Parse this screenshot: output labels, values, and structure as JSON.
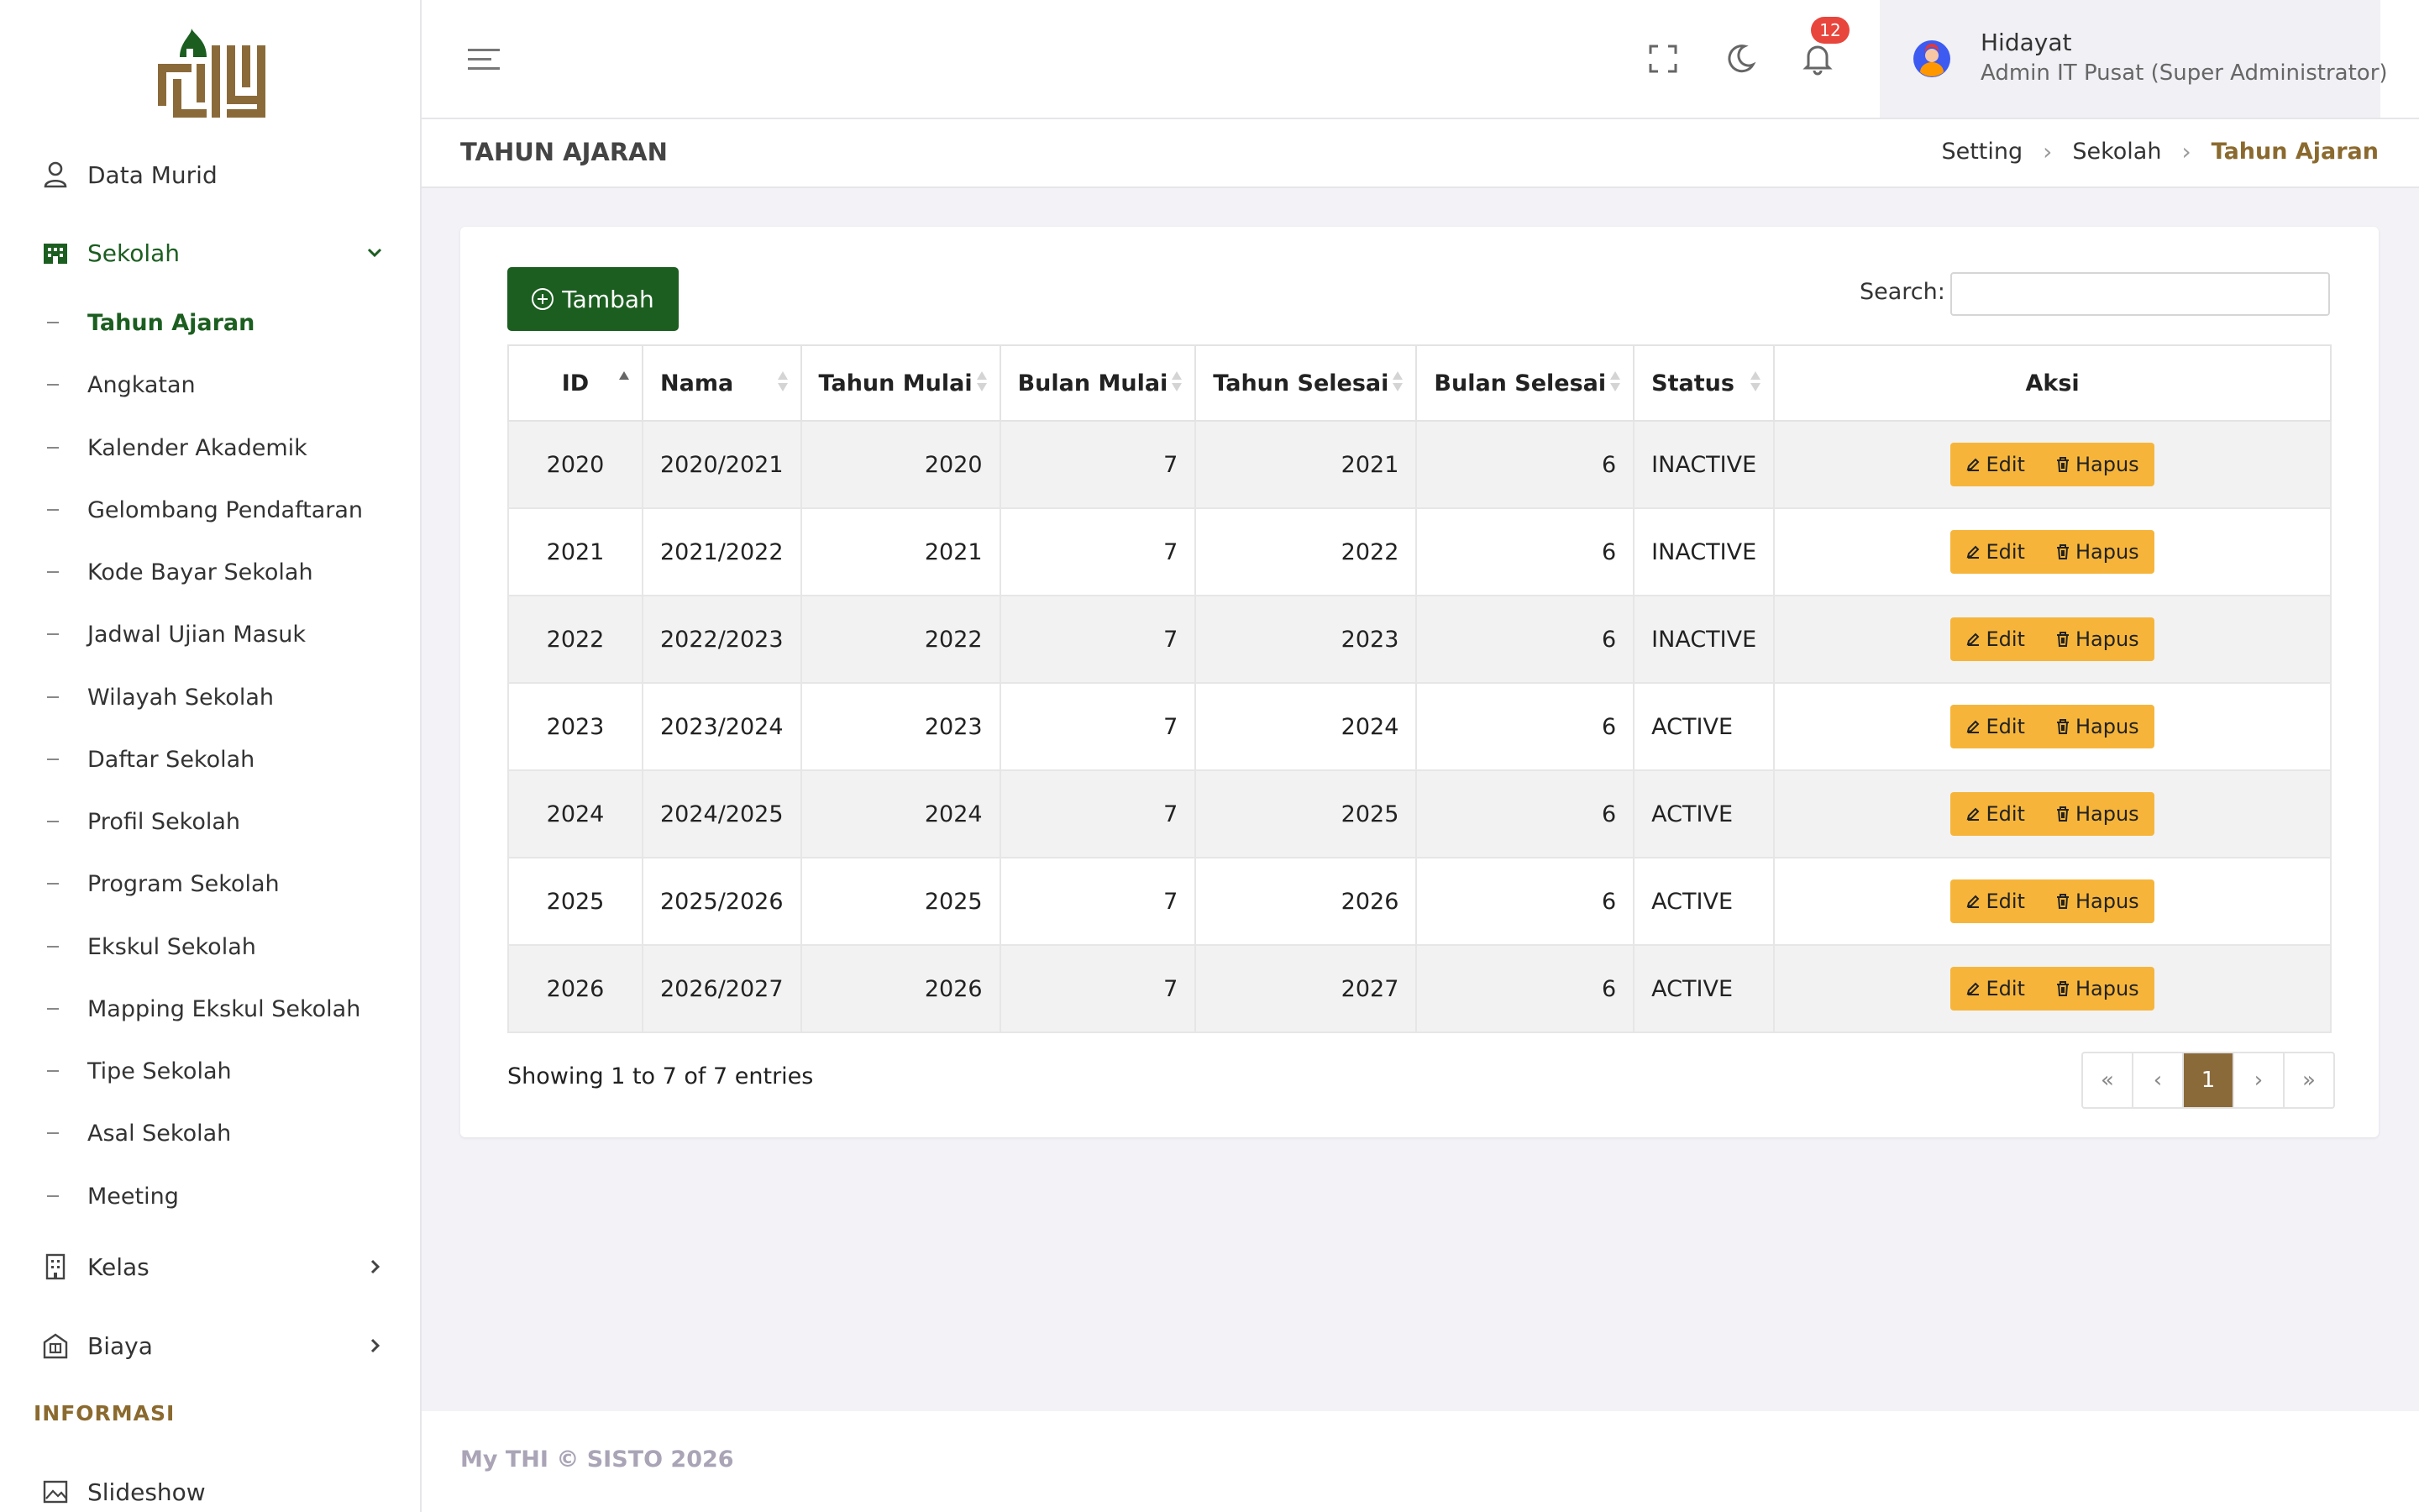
{
  "sidebar": {
    "items": [
      {
        "label": "Data Murid",
        "icon": "user-icon"
      },
      {
        "label": "Sekolah",
        "icon": "building-icon"
      }
    ],
    "sub_items": [
      "Tahun Ajaran",
      "Angkatan",
      "Kalender Akademik",
      "Gelombang Pendaftaran",
      "Kode Bayar Sekolah",
      "Jadwal Ujian Masuk",
      "Wilayah Sekolah",
      "Daftar Sekolah",
      "Profil Sekolah",
      "Program Sekolah",
      "Ekskul Sekolah",
      "Mapping Ekskul Sekolah",
      "Tipe Sekolah",
      "Asal Sekolah",
      "Meeting"
    ],
    "kelas_label": "Kelas",
    "biaya_label": "Biaya",
    "section_informasi": "INFORMASI",
    "slideshow_label": "Slideshow"
  },
  "topbar": {
    "notification_count": "12",
    "user_name": "Hidayat",
    "user_role": "Admin IT Pusat (Super Administrator)"
  },
  "page": {
    "title": "TAHUN AJARAN",
    "breadcrumb": [
      "Setting",
      "Sekolah",
      "Tahun Ajaran"
    ]
  },
  "toolbar": {
    "add_label": "Tambah",
    "search_label": "Search:",
    "search_value": ""
  },
  "table": {
    "headers": [
      "ID",
      "Nama",
      "Tahun Mulai",
      "Bulan Mulai",
      "Tahun Selesai",
      "Bulan Selesai",
      "Status",
      "Aksi"
    ],
    "rows": [
      [
        "2020",
        "2020/2021",
        "2020",
        "7",
        "2021",
        "6",
        "INACTIVE"
      ],
      [
        "2021",
        "2021/2022",
        "2021",
        "7",
        "2022",
        "6",
        "INACTIVE"
      ],
      [
        "2022",
        "2022/2023",
        "2022",
        "7",
        "2023",
        "6",
        "INACTIVE"
      ],
      [
        "2023",
        "2023/2024",
        "2023",
        "7",
        "2024",
        "6",
        "ACTIVE"
      ],
      [
        "2024",
        "2024/2025",
        "2024",
        "7",
        "2025",
        "6",
        "ACTIVE"
      ],
      [
        "2025",
        "2025/2026",
        "2025",
        "7",
        "2026",
        "6",
        "ACTIVE"
      ],
      [
        "2026",
        "2026/2027",
        "2026",
        "7",
        "2027",
        "6",
        "ACTIVE"
      ]
    ],
    "edit_label": "Edit",
    "delete_label": "Hapus"
  },
  "footer_info": {
    "entries": "Showing 1 to 7 of 7 entries",
    "pagination": [
      "«",
      "‹",
      "1",
      "›",
      "»"
    ]
  },
  "footer": {
    "copyright": "My THI © SISTO 2026"
  },
  "colors": {
    "brand_green": "#1b5e20",
    "brand_brown": "#8b6a2f",
    "action_yellow": "#f6b53a",
    "badge_red": "#e8453c"
  }
}
